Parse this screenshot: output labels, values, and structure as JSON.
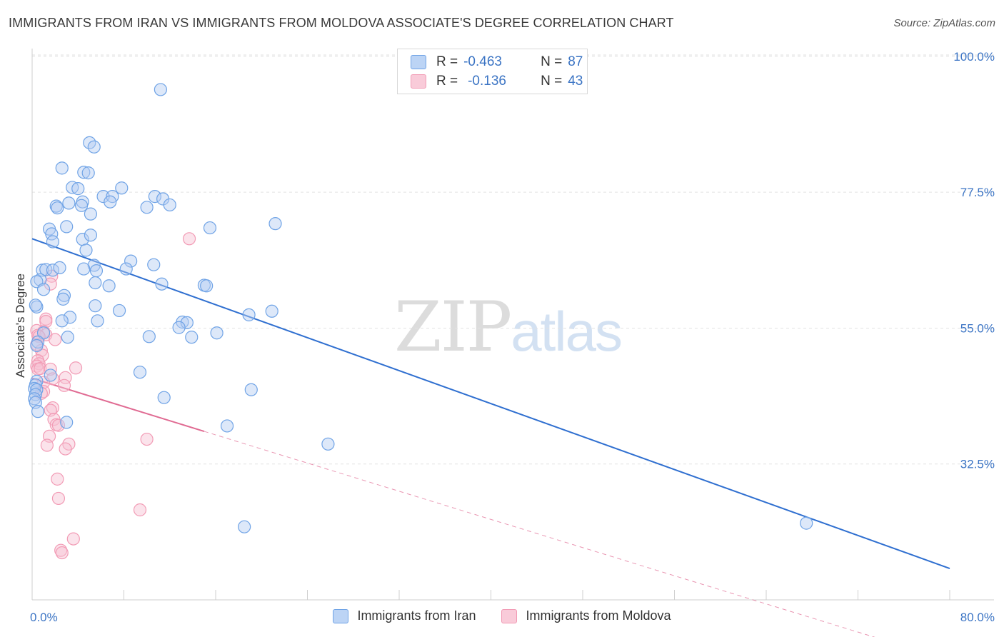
{
  "header": {
    "title": "IMMIGRANTS FROM IRAN VS IMMIGRANTS FROM MOLDOVA ASSOCIATE'S DEGREE CORRELATION CHART",
    "source": "Source: ZipAtlas.com"
  },
  "watermark": {
    "zip": "ZIP",
    "atlas": "atlas"
  },
  "legend": {
    "rows": [
      {
        "r_label": "R =",
        "r_value": "-0.463",
        "n_label": "N =",
        "n_value": "87",
        "color": "#6fa3e6"
      },
      {
        "r_label": "R =",
        "r_value": "-0.136",
        "n_label": "N =",
        "n_value": "43",
        "color": "#f29bb5"
      }
    ]
  },
  "bottom_legend": {
    "iran": "Immigrants from Iran",
    "moldova": "Immigrants from Moldova"
  },
  "chart_data": {
    "type": "scatter",
    "xlabel": "",
    "ylabel": "Associate's Degree",
    "xlim": [
      0,
      80
    ],
    "ylim": [
      10,
      102
    ],
    "x_tick_labels": {
      "min": "0.0%",
      "max": "80.0%"
    },
    "y_ticks": [
      {
        "value": 100,
        "label": "100.0%"
      },
      {
        "value": 77.5,
        "label": "77.5%"
      },
      {
        "value": 55,
        "label": "55.0%"
      },
      {
        "value": 32.5,
        "label": "32.5%"
      }
    ],
    "grid": true,
    "legend_position": "top-center",
    "series": [
      {
        "name": "Immigrants from Iran",
        "color": "#6fa3e6",
        "line_color": "#2f6fd0",
        "trend": {
          "x0": 0,
          "y0": 69.8,
          "x1": 80,
          "y1": 15.2
        },
        "points": [
          [
            11.2,
            94.5
          ],
          [
            5.0,
            85.7
          ],
          [
            5.4,
            85.0
          ],
          [
            2.6,
            81.5
          ],
          [
            4.5,
            80.8
          ],
          [
            4.9,
            80.7
          ],
          [
            3.5,
            78.3
          ],
          [
            4.0,
            78.1
          ],
          [
            7.8,
            78.2
          ],
          [
            6.2,
            76.8
          ],
          [
            7.0,
            76.8
          ],
          [
            6.8,
            75.9
          ],
          [
            10.7,
            76.8
          ],
          [
            11.4,
            76.4
          ],
          [
            2.1,
            75.2
          ],
          [
            3.2,
            75.7
          ],
          [
            4.4,
            75.9
          ],
          [
            4.3,
            75.3
          ],
          [
            2.2,
            74.9
          ],
          [
            5.1,
            73.9
          ],
          [
            10.0,
            75.0
          ],
          [
            12.0,
            75.4
          ],
          [
            3.0,
            71.8
          ],
          [
            1.5,
            71.4
          ],
          [
            1.7,
            70.6
          ],
          [
            1.8,
            69.3
          ],
          [
            4.4,
            69.7
          ],
          [
            5.1,
            70.4
          ],
          [
            15.5,
            71.6
          ],
          [
            21.2,
            72.3
          ],
          [
            4.7,
            67.9
          ],
          [
            5.4,
            65.4
          ],
          [
            8.6,
            66.1
          ],
          [
            10.6,
            65.5
          ],
          [
            0.9,
            64.6
          ],
          [
            1.2,
            64.7
          ],
          [
            0.7,
            63.0
          ],
          [
            1.8,
            64.6
          ],
          [
            2.4,
            65.0
          ],
          [
            4.5,
            64.8
          ],
          [
            5.6,
            64.5
          ],
          [
            8.2,
            64.8
          ],
          [
            0.4,
            62.7
          ],
          [
            5.5,
            62.5
          ],
          [
            6.7,
            62.0
          ],
          [
            11.3,
            62.3
          ],
          [
            15.0,
            62.1
          ],
          [
            15.2,
            62.0
          ],
          [
            1.0,
            61.4
          ],
          [
            2.8,
            60.4
          ],
          [
            2.7,
            59.8
          ],
          [
            0.4,
            58.5
          ],
          [
            0.3,
            58.8
          ],
          [
            5.5,
            58.7
          ],
          [
            7.6,
            57.9
          ],
          [
            18.9,
            57.2
          ],
          [
            20.9,
            57.8
          ],
          [
            3.3,
            56.8
          ],
          [
            2.6,
            56.2
          ],
          [
            5.7,
            56.2
          ],
          [
            13.1,
            56.0
          ],
          [
            13.5,
            55.9
          ],
          [
            12.8,
            55.1
          ],
          [
            16.1,
            54.2
          ],
          [
            1.0,
            54.2
          ],
          [
            3.1,
            53.5
          ],
          [
            10.2,
            53.6
          ],
          [
            13.9,
            53.5
          ],
          [
            0.5,
            52.7
          ],
          [
            0.4,
            52.1
          ],
          [
            9.4,
            47.7
          ],
          [
            1.6,
            47.2
          ],
          [
            0.4,
            46.2
          ],
          [
            0.3,
            45.6
          ],
          [
            0.2,
            45.0
          ],
          [
            0.4,
            44.8
          ],
          [
            0.3,
            44.0
          ],
          [
            0.2,
            43.3
          ],
          [
            0.3,
            42.7
          ],
          [
            19.1,
            44.8
          ],
          [
            11.5,
            43.5
          ],
          [
            3.0,
            39.4
          ],
          [
            17.0,
            38.8
          ],
          [
            25.8,
            35.8
          ],
          [
            18.5,
            22.1
          ],
          [
            67.5,
            22.7
          ],
          [
            0.5,
            41.2
          ]
        ]
      },
      {
        "name": "Immigrants from Moldova",
        "color": "#f29bb5",
        "line_color": "#e06a92",
        "trend": {
          "x0": 0,
          "y0": 46.7,
          "x1": 15,
          "y1": 37.9
        },
        "trend_ext": {
          "x0": 15,
          "y0": 37.9,
          "x1": 80,
          "y1": 0
        },
        "points": [
          [
            13.7,
            69.8
          ],
          [
            1.7,
            63.6
          ],
          [
            1.6,
            62.3
          ],
          [
            1.2,
            56.5
          ],
          [
            1.2,
            56.1
          ],
          [
            0.4,
            54.6
          ],
          [
            0.5,
            53.8
          ],
          [
            1.0,
            54.4
          ],
          [
            1.2,
            53.9
          ],
          [
            0.6,
            53.6
          ],
          [
            0.4,
            52.3
          ],
          [
            2.0,
            53.1
          ],
          [
            0.8,
            51.3
          ],
          [
            0.9,
            50.5
          ],
          [
            0.5,
            49.6
          ],
          [
            0.6,
            49.1
          ],
          [
            0.4,
            48.7
          ],
          [
            0.5,
            48.2
          ],
          [
            0.7,
            48.3
          ],
          [
            1.6,
            48.2
          ],
          [
            3.8,
            48.4
          ],
          [
            2.9,
            46.8
          ],
          [
            1.8,
            46.6
          ],
          [
            1.0,
            46.0
          ],
          [
            2.8,
            45.5
          ],
          [
            1.0,
            44.5
          ],
          [
            0.8,
            44.2
          ],
          [
            1.8,
            41.8
          ],
          [
            1.6,
            41.4
          ],
          [
            1.9,
            39.9
          ],
          [
            2.1,
            39.0
          ],
          [
            2.3,
            38.9
          ],
          [
            1.5,
            37.1
          ],
          [
            3.2,
            35.8
          ],
          [
            1.3,
            35.6
          ],
          [
            2.9,
            35.0
          ],
          [
            10.0,
            36.6
          ],
          [
            2.2,
            30.0
          ],
          [
            2.3,
            26.8
          ],
          [
            9.4,
            24.9
          ],
          [
            3.6,
            20.1
          ],
          [
            2.5,
            18.2
          ],
          [
            2.6,
            17.8
          ]
        ]
      }
    ]
  }
}
